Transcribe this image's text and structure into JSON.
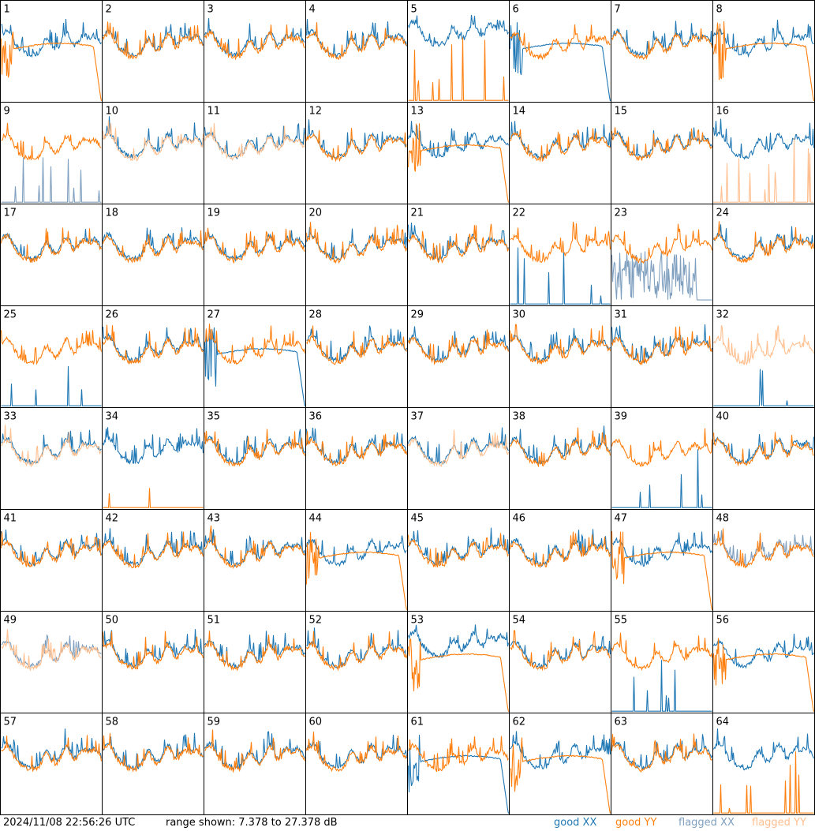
{
  "footer": {
    "timestamp": "2024/11/08 22:56:26 UTC",
    "range_text": "range shown: 7.378 to 27.378 dB"
  },
  "legend": [
    {
      "label": "good XX",
      "color": "#1f77b4"
    },
    {
      "label": "good YY",
      "color": "#ff7f0e"
    },
    {
      "label": "flagged XX",
      "color": "#7f9fbf"
    },
    {
      "label": "flagged YY",
      "color": "#ffbf8f"
    }
  ],
  "chart_data": {
    "type": "line",
    "grid": "8x8 small multiples",
    "y_range_db": [
      7.378,
      27.378
    ],
    "panel_labels": [
      "1",
      "2",
      "3",
      "4",
      "5",
      "6",
      "7",
      "8",
      "9",
      "10",
      "11",
      "12",
      "13",
      "14",
      "15",
      "16",
      "17",
      "18",
      "19",
      "20",
      "21",
      "22",
      "23",
      "24",
      "25",
      "26",
      "27",
      "28",
      "29",
      "30",
      "31",
      "32",
      "33",
      "34",
      "35",
      "36",
      "37",
      "38",
      "39",
      "40",
      "41",
      "42",
      "43",
      "44",
      "45",
      "46",
      "47",
      "48",
      "49",
      "50",
      "51",
      "52",
      "53",
      "54",
      "55",
      "56",
      "57",
      "58",
      "59",
      "60",
      "61",
      "62",
      "63",
      "64"
    ],
    "series": [
      "good XX",
      "good YY",
      "flagged XX",
      "flagged YY"
    ],
    "panel_styles": {
      "1": {
        "yy": "drop",
        "xx": "normal"
      },
      "5": {
        "xx": "high",
        "yy": "spikes"
      },
      "6": {
        "xx": "drop",
        "yy": "normal"
      },
      "8": {
        "yy": "drop",
        "xx": "normal"
      },
      "9": {
        "flagged_xx": "spikes",
        "yy": "normal"
      },
      "10": {
        "xx": "normal",
        "flagged_yy": "normal"
      },
      "11": {
        "xx": "normal",
        "flagged_yy": "normal"
      },
      "13": {
        "yy": "drop",
        "xx": "normal"
      },
      "16": {
        "xx": "normal",
        "flagged_yy": "spikes"
      },
      "22": {
        "yy": "normal",
        "xx": "spikes"
      },
      "23": {
        "flagged_xx": "noise",
        "yy": "normal"
      },
      "25": {
        "yy": "normal",
        "xx": "spikes"
      },
      "27": {
        "xx": "drop",
        "yy": "normal"
      },
      "32": {
        "flagged_yy": "normal",
        "xx": "spikes"
      },
      "33": {
        "xx": "normal",
        "flagged_yy": "normal"
      },
      "34": {
        "xx": "normal",
        "yy": "spikes"
      },
      "37": {
        "xx": "normal",
        "flagged_yy": "normal"
      },
      "39": {
        "yy": "normal",
        "xx": "spikes"
      },
      "44": {
        "yy": "drop",
        "xx": "normal"
      },
      "47": {
        "yy": "drop",
        "xx": "normal"
      },
      "48": {
        "flagged_xx": "normal",
        "yy": "normal"
      },
      "49": {
        "flagged_xx": "normal",
        "flagged_yy": "normal"
      },
      "53": {
        "yy": "drop",
        "xx": "high"
      },
      "55": {
        "xx": "spikes",
        "yy": "normal"
      },
      "56": {
        "yy": "drop",
        "xx": "normal"
      },
      "61": {
        "xx": "drop",
        "yy": "normal"
      },
      "62": {
        "yy": "drop",
        "xx": "normal"
      },
      "64": {
        "xx": "normal",
        "yy": "spikes"
      }
    }
  }
}
